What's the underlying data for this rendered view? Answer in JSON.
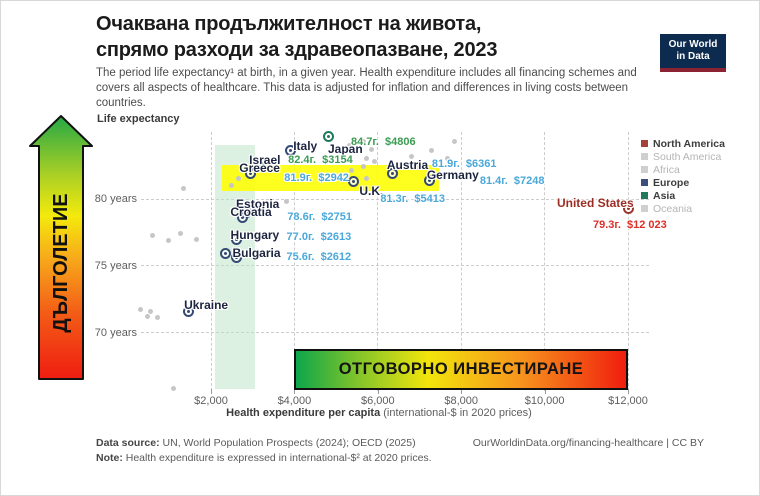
{
  "header": {
    "title_line1": "Очаквана продължителност на живота,",
    "title_line2": "спрямо разходи за здравеопазване, 2023",
    "subtitle": "The period life expectancy¹ at birth, in a given year. Health expenditure includes all financing schemes and covers all aspects of healthcare. This data is adjusted for inflation and differences in living costs between countries.",
    "logo_line1": "Our World",
    "logo_line2": "in Data"
  },
  "annotations": {
    "longevity_arrow_label": "ДЪЛГОЛЕТИЕ",
    "investment_banner_label": "ОТГОВОРНО ИНВЕСТИРАНЕ"
  },
  "chart_data": {
    "type": "scatter",
    "title": "Очаквана продължителност на живота, спрямо разходи за здравеопазване, 2023",
    "xlabel": "Health expenditure per capita (international-$ in 2020 prices)",
    "xlabel_bold_part": "Health expenditure per capita",
    "xlabel_regular_part": " (international-$ in 2020 prices)",
    "ylabel": "Life expectancy",
    "x_ticks": [
      {
        "v": 2000,
        "label": "$2,000"
      },
      {
        "v": 4000,
        "label": "$4,000"
      },
      {
        "v": 6000,
        "label": "$6,000"
      },
      {
        "v": 8000,
        "label": "$8,000"
      },
      {
        "v": 10000,
        "label": "$10,000"
      },
      {
        "v": 12000,
        "label": "$12,000"
      }
    ],
    "y_ticks": [
      {
        "v": 80,
        "label": "80 years"
      },
      {
        "v": 75,
        "label": "75 years"
      },
      {
        "v": 70,
        "label": "70 years"
      }
    ],
    "xlim": [
      0,
      13200
    ],
    "ylim": [
      65,
      85
    ],
    "grid": "dashed",
    "legend_position": "right",
    "countries": [
      {
        "name": "Japan",
        "continent": "Asia",
        "life_expectancy": 84.7,
        "expenditure": 4806,
        "value_label": "84.7г.  $4806",
        "value_color": "#3b9c53"
      },
      {
        "name": "Italy",
        "continent": "Europe",
        "life_expectancy": 83.6,
        "expenditure": 3900,
        "value_label": null
      },
      {
        "name": "Israel",
        "continent": "Asia",
        "life_expectancy": 82.4,
        "expenditure": 3154,
        "value_label": "82.4г.  $3154",
        "value_color": "#3b9c53"
      },
      {
        "name": "Greece",
        "continent": "Europe",
        "life_expectancy": 81.9,
        "expenditure": 2942,
        "value_label": "81.9г.  $2942",
        "value_color": "#4aa8da"
      },
      {
        "name": "Austria",
        "continent": "Europe",
        "life_expectancy": 81.9,
        "expenditure": 6361,
        "value_label": "81.9г.  $6361",
        "value_color": "#4aa8da"
      },
      {
        "name": "Germany",
        "continent": "Europe",
        "life_expectancy": 81.4,
        "expenditure": 7248,
        "value_label": "81.4г.  $7248",
        "value_color": "#4aa8da"
      },
      {
        "name": "U.K.",
        "continent": "Europe",
        "life_expectancy": 81.3,
        "expenditure": 5413,
        "value_label": "81.3г.  $5413",
        "value_color": "#4aa8da"
      },
      {
        "name": "United States",
        "continent": "North America",
        "life_expectancy": 79.3,
        "expenditure": 12023,
        "value_label": "79.3г.  $12 023",
        "value_color": "#dc2f28",
        "label_color": "#9b2c24"
      },
      {
        "name": "Estonia",
        "continent": "Europe",
        "life_expectancy": 79.0,
        "expenditure": 2840,
        "value_label": null
      },
      {
        "name": "Croatia",
        "continent": "Europe",
        "life_expectancy": 78.6,
        "expenditure": 2751,
        "value_label": "78.6г.  $2751",
        "value_color": "#4aa8da"
      },
      {
        "name": "Hungary",
        "continent": "Europe",
        "life_expectancy": 77.0,
        "expenditure": 2613,
        "value_label": "77.0г.  $2613",
        "value_color": "#4aa8da"
      },
      {
        "name": "Bulgaria",
        "continent": "Europe",
        "life_expectancy": 75.6,
        "expenditure": 2612,
        "value_label": "75.6г.  $2612",
        "value_color": "#4aa8da"
      },
      {
        "name": "",
        "continent": "Europe",
        "life_expectancy": 75.9,
        "expenditure": 2340,
        "value_label": null
      },
      {
        "name": "Ukraine",
        "continent": "Europe",
        "life_expectancy": 71.6,
        "expenditure": 1450,
        "value_label": null
      }
    ],
    "background_points": [
      [
        1350,
        80.8
      ],
      [
        2650,
        81.5
      ],
      [
        2480,
        81.0
      ],
      [
        3560,
        79.7
      ],
      [
        3820,
        79.8
      ],
      [
        590,
        77.3
      ],
      [
        990,
        76.9
      ],
      [
        1260,
        77.4
      ],
      [
        1660,
        77.0
      ],
      [
        320,
        71.7
      ],
      [
        470,
        71.2
      ],
      [
        560,
        71.6
      ],
      [
        710,
        71.1
      ],
      [
        1090,
        65.8
      ],
      [
        5650,
        84.3
      ],
      [
        5310,
        84.0
      ],
      [
        5860,
        83.7
      ],
      [
        4470,
        83.6
      ],
      [
        5740,
        83.0
      ],
      [
        5910,
        82.8
      ],
      [
        5650,
        82.4
      ],
      [
        5360,
        82.1
      ],
      [
        5720,
        81.5
      ],
      [
        7830,
        84.3
      ],
      [
        7680,
        83.0
      ],
      [
        6820,
        83.2
      ],
      [
        7280,
        83.6
      ],
      [
        6870,
        82.6
      ],
      [
        6510,
        82.5
      ]
    ],
    "marker_colors": {
      "Europe": "#344a74",
      "Asia": "#20795d",
      "North America": "#9b372e"
    }
  },
  "legend": {
    "items": [
      {
        "label": "North America",
        "color": "#a2423a",
        "muted": false
      },
      {
        "label": "South America",
        "color": "#cfcfcf",
        "muted": true
      },
      {
        "label": "Africa",
        "color": "#cfcfcf",
        "muted": true
      },
      {
        "label": "Europe",
        "color": "#3b4f7e",
        "muted": false
      },
      {
        "label": "Asia",
        "color": "#20795d",
        "muted": false
      },
      {
        "label": "Oceania",
        "color": "#cfcfcf",
        "muted": true
      }
    ]
  },
  "footer": {
    "source_label": "Data source:",
    "source_text": " UN, World Population Prospects (2024); OECD (2025)",
    "note_label": "Note:",
    "note_text": " Health expenditure is expressed in international-$² at 2020 prices.",
    "link": "OurWorldinData.org/financing-healthcare | CC BY"
  },
  "colors": {
    "asia_value_text": "#3b9c53",
    "europe_value_text": "#4aa8da",
    "north_america_value_text": "#dc2f28",
    "country_label_text": "#1d2440",
    "us_label_text": "#9b2c24",
    "yellow_band": "#ffff00",
    "green_band": "#daf0dd"
  }
}
